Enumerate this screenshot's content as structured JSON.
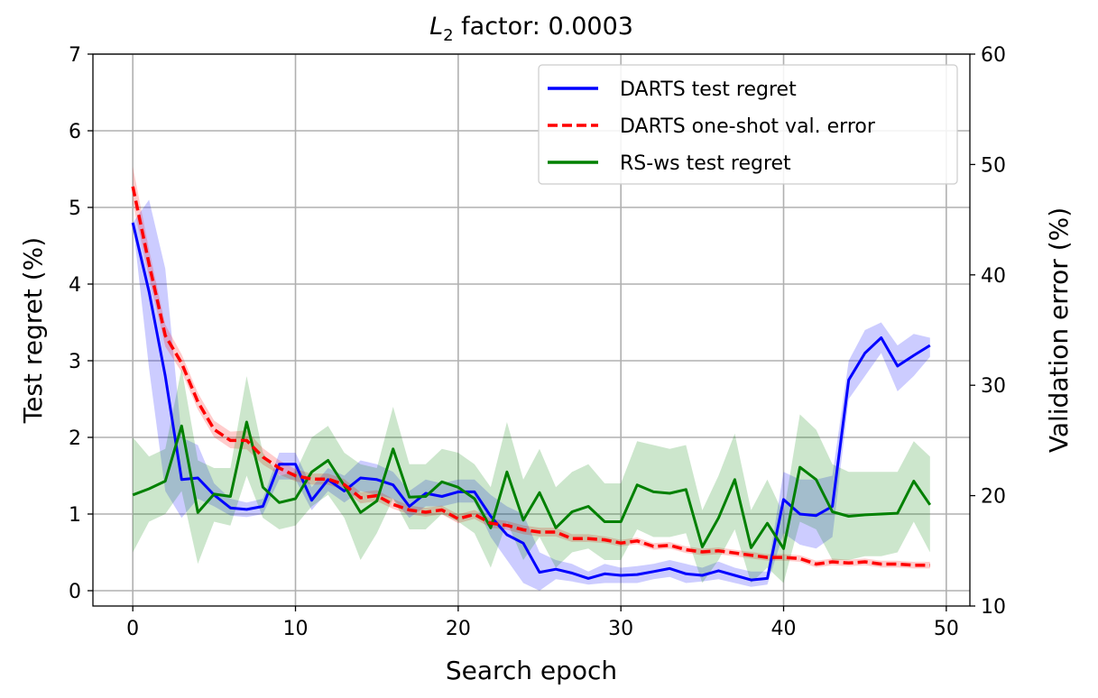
{
  "chart_data": {
    "type": "line",
    "title_prefix": "L",
    "title_subscript": "2",
    "title_suffix": " factor: 0.0003",
    "xlabel": "Search epoch",
    "ylabel_left": "Test regret (%)",
    "ylabel_right": "Validation error (%)",
    "xlim": [
      -2.45,
      51.45
    ],
    "ylim_left": [
      -0.2,
      7.0
    ],
    "ylim_right": [
      10,
      60
    ],
    "xticks": [
      0,
      10,
      20,
      30,
      40,
      50
    ],
    "yticks_left": [
      0,
      1,
      2,
      3,
      4,
      5,
      6,
      7
    ],
    "yticks_right": [
      10,
      20,
      30,
      40,
      50,
      60
    ],
    "grid": true,
    "legend_position": "top-right",
    "series": [
      {
        "name": "DARTS test regret",
        "axis": "left",
        "color": "#0000ff",
        "style": "solid",
        "x": [
          0,
          1,
          2,
          3,
          4,
          5,
          6,
          7,
          8,
          9,
          10,
          11,
          12,
          13,
          14,
          15,
          16,
          17,
          18,
          19,
          20,
          21,
          22,
          23,
          24,
          25,
          26,
          27,
          28,
          29,
          30,
          31,
          32,
          33,
          34,
          35,
          36,
          37,
          38,
          39,
          40,
          41,
          42,
          43,
          44,
          45,
          46,
          47,
          48,
          49
        ],
        "y": [
          4.8,
          3.9,
          2.8,
          1.45,
          1.47,
          1.25,
          1.08,
          1.06,
          1.1,
          1.65,
          1.65,
          1.18,
          1.45,
          1.3,
          1.47,
          1.45,
          1.38,
          1.1,
          1.27,
          1.23,
          1.29,
          1.29,
          0.97,
          0.73,
          0.62,
          0.24,
          0.28,
          0.23,
          0.16,
          0.22,
          0.2,
          0.21,
          0.25,
          0.29,
          0.22,
          0.2,
          0.26,
          0.2,
          0.14,
          0.16,
          1.19,
          1.0,
          0.98,
          1.1,
          2.75,
          3.1,
          3.3,
          2.93,
          3.07,
          3.2
        ],
        "band_low": [
          4.8,
          2.9,
          1.3,
          0.95,
          1.2,
          1.1,
          0.98,
          0.96,
          1.0,
          1.45,
          1.45,
          1.05,
          1.3,
          1.15,
          1.3,
          1.25,
          1.2,
          0.95,
          1.1,
          1.1,
          1.15,
          1.15,
          0.7,
          0.4,
          0.1,
          0.0,
          0.15,
          0.12,
          0.08,
          0.1,
          0.1,
          0.1,
          0.15,
          0.18,
          0.1,
          0.12,
          0.15,
          0.1,
          0.05,
          0.08,
          0.75,
          0.6,
          0.55,
          0.7,
          2.5,
          2.8,
          3.1,
          2.6,
          2.8,
          3.05
        ],
        "band_high": [
          4.8,
          5.1,
          4.2,
          2.0,
          1.9,
          1.4,
          1.2,
          1.15,
          1.2,
          1.8,
          1.8,
          1.35,
          1.6,
          1.5,
          1.7,
          1.65,
          1.55,
          1.3,
          1.45,
          1.4,
          1.45,
          1.45,
          1.25,
          1.1,
          1.0,
          0.5,
          0.4,
          0.35,
          0.25,
          0.35,
          0.3,
          0.32,
          0.35,
          0.4,
          0.35,
          0.3,
          0.38,
          0.3,
          0.25,
          0.25,
          1.55,
          1.45,
          1.45,
          1.5,
          3.0,
          3.4,
          3.5,
          3.2,
          3.35,
          3.3
        ]
      },
      {
        "name": "DARTS one-shot val. error",
        "axis": "right",
        "color": "#ff0000",
        "style": "dashed",
        "x": [
          0,
          1,
          2,
          3,
          4,
          5,
          6,
          7,
          8,
          9,
          10,
          11,
          12,
          13,
          14,
          15,
          16,
          17,
          18,
          19,
          20,
          21,
          22,
          23,
          24,
          25,
          26,
          27,
          28,
          29,
          30,
          31,
          32,
          33,
          34,
          35,
          36,
          37,
          38,
          39,
          40,
          41,
          42,
          43,
          44,
          45,
          46,
          47,
          48,
          49
        ],
        "y": [
          48.0,
          41.0,
          34.5,
          32.0,
          28.5,
          26.0,
          25.0,
          25.0,
          23.5,
          22.5,
          21.8,
          21.5,
          21.5,
          21.0,
          19.8,
          20.0,
          19.2,
          18.7,
          18.5,
          18.7,
          17.9,
          18.3,
          17.5,
          17.3,
          16.9,
          16.7,
          16.7,
          16.1,
          16.1,
          16.0,
          15.7,
          15.9,
          15.4,
          15.5,
          15.1,
          14.9,
          15.0,
          14.8,
          14.6,
          14.4,
          14.4,
          14.3,
          13.8,
          14.0,
          13.9,
          14.0,
          13.8,
          13.8,
          13.7,
          13.7
        ],
        "band_low": [
          46.5,
          39.8,
          33.5,
          31.2,
          27.8,
          25.3,
          24.3,
          24.2,
          22.8,
          21.9,
          21.3,
          21.0,
          21.0,
          20.5,
          19.3,
          19.5,
          18.8,
          18.3,
          18.1,
          18.3,
          17.5,
          17.9,
          17.1,
          16.9,
          16.5,
          16.3,
          16.3,
          15.8,
          15.8,
          15.7,
          15.4,
          15.6,
          15.1,
          15.2,
          14.8,
          14.6,
          14.7,
          14.5,
          14.3,
          14.1,
          14.1,
          14.0,
          13.5,
          13.7,
          13.6,
          13.7,
          13.5,
          13.5,
          13.4,
          13.4
        ],
        "band_high": [
          49.8,
          42.3,
          35.5,
          32.8,
          29.3,
          26.8,
          25.8,
          25.9,
          24.3,
          23.2,
          22.4,
          22.0,
          22.0,
          21.5,
          20.3,
          20.5,
          19.7,
          19.1,
          18.9,
          19.1,
          18.3,
          18.7,
          17.9,
          17.7,
          17.3,
          17.1,
          17.1,
          16.5,
          16.5,
          16.3,
          16.0,
          16.2,
          15.7,
          15.8,
          15.4,
          15.2,
          15.3,
          15.1,
          14.9,
          14.7,
          14.7,
          14.6,
          14.1,
          14.3,
          14.2,
          14.3,
          14.1,
          14.1,
          14.0,
          14.0
        ]
      },
      {
        "name": "RS-ws test regret",
        "axis": "left",
        "color": "#008000",
        "style": "solid",
        "x": [
          0,
          1,
          2,
          3,
          4,
          5,
          6,
          7,
          8,
          9,
          10,
          11,
          12,
          13,
          14,
          15,
          16,
          17,
          18,
          19,
          20,
          21,
          22,
          23,
          24,
          25,
          26,
          27,
          28,
          29,
          30,
          31,
          32,
          33,
          34,
          35,
          36,
          37,
          38,
          39,
          40,
          41,
          42,
          43,
          44,
          45,
          46,
          47,
          48,
          49
        ],
        "y": [
          1.25,
          1.33,
          1.43,
          2.15,
          1.02,
          1.26,
          1.23,
          2.2,
          1.35,
          1.15,
          1.2,
          1.55,
          1.7,
          1.37,
          1.02,
          1.17,
          1.85,
          1.22,
          1.23,
          1.42,
          1.35,
          1.2,
          0.82,
          1.55,
          0.92,
          1.28,
          0.82,
          1.03,
          1.1,
          0.9,
          0.9,
          1.38,
          1.29,
          1.27,
          1.32,
          0.57,
          0.95,
          1.45,
          0.56,
          0.88,
          0.55,
          1.61,
          1.45,
          1.03,
          0.97,
          0.99,
          1.0,
          1.01,
          1.43,
          1.12
        ],
        "band_low": [
          0.5,
          0.9,
          1.0,
          1.3,
          0.35,
          0.9,
          0.85,
          1.5,
          0.95,
          0.8,
          0.85,
          1.1,
          1.25,
          0.95,
          0.4,
          0.75,
          1.2,
          0.8,
          0.8,
          1.0,
          0.9,
          0.75,
          0.3,
          0.9,
          0.4,
          0.7,
          0.3,
          0.5,
          0.55,
          0.4,
          0.4,
          0.8,
          0.7,
          0.7,
          0.75,
          0.1,
          0.4,
          0.8,
          0.1,
          0.3,
          0.1,
          0.9,
          0.8,
          0.4,
          0.4,
          0.45,
          0.45,
          0.5,
          0.9,
          0.5
        ],
        "band_high": [
          2.0,
          1.75,
          1.85,
          2.9,
          1.7,
          1.6,
          1.6,
          2.8,
          1.8,
          1.5,
          1.55,
          2.0,
          2.15,
          1.8,
          1.65,
          1.6,
          2.4,
          1.65,
          1.65,
          1.85,
          1.8,
          1.65,
          1.35,
          2.2,
          1.45,
          1.85,
          1.35,
          1.55,
          1.65,
          1.4,
          1.4,
          1.95,
          1.9,
          1.85,
          1.9,
          1.05,
          1.5,
          2.05,
          1.05,
          1.45,
          1.0,
          2.3,
          2.1,
          1.65,
          1.55,
          1.55,
          1.55,
          1.55,
          1.95,
          1.75
        ]
      }
    ]
  }
}
